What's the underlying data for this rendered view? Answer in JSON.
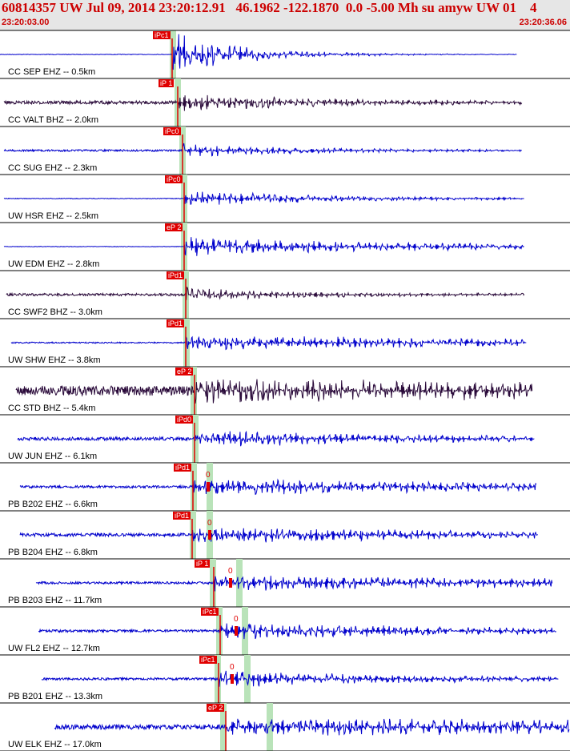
{
  "header": {
    "title": "60814357 UW Jul 09, 2014 23:20:12.91   46.1962 -122.1870  0.0 -5.00 Mh su amyw UW 01    4",
    "time_start": "23:20:03.00",
    "time_end": "23:20:36.06"
  },
  "colors": {
    "header_bg": "#e6e6e6",
    "header_text": "#cc0000",
    "trace_blue": "#0000cc",
    "trace_dark": "#2a0a3a",
    "pick_box": "#e00000",
    "pick_band": "#b9e3b9"
  },
  "traces": [
    {
      "label": "CC SEP EHZ -- 0.5km",
      "pick": "iPc1",
      "color": "blue"
    },
    {
      "label": "CC VALT BHZ -- 2.0km",
      "pick": "iP 1",
      "color": "dark"
    },
    {
      "label": "CC SUG EHZ -- 2.3km",
      "pick": "iPc0",
      "color": "blue"
    },
    {
      "label": "UW HSR EHZ -- 2.5km",
      "pick": "iPc0",
      "color": "blue"
    },
    {
      "label": "UW EDM EHZ -- 2.8km",
      "pick": "eP 2",
      "color": "blue"
    },
    {
      "label": "CC SWF2 BHZ -- 3.0km",
      "pick": "iPd1",
      "color": "dark"
    },
    {
      "label": "UW SHW EHZ -- 3.8km",
      "pick": "iPd1",
      "color": "blue"
    },
    {
      "label": "CC STD BHZ -- 5.4km",
      "pick": "eP 2",
      "color": "dark"
    },
    {
      "label": "UW JUN EHZ -- 6.1km",
      "pick": "iPd0",
      "color": "blue"
    },
    {
      "label": "PB B202 EHZ -- 6.6km",
      "pick": "iPd1",
      "s_mark": "0",
      "color": "blue"
    },
    {
      "label": "PB B204 EHZ -- 6.8km",
      "pick": "iPd1",
      "s_mark": "0",
      "color": "blue"
    },
    {
      "label": "PB B203 EHZ -- 11.7km",
      "pick": "iP 1",
      "s_mark": "0",
      "color": "blue"
    },
    {
      "label": "UW FL2 EHZ -- 12.7km",
      "pick": "iPc1",
      "s_mark": "0",
      "color": "blue"
    },
    {
      "label": "PB B201 EHZ -- 13.3km",
      "pick": "iPc1",
      "s_mark": "0",
      "color": "blue"
    },
    {
      "label": "UW ELK EHZ -- 17.0km",
      "pick": "eP 2",
      "color": "blue"
    }
  ]
}
